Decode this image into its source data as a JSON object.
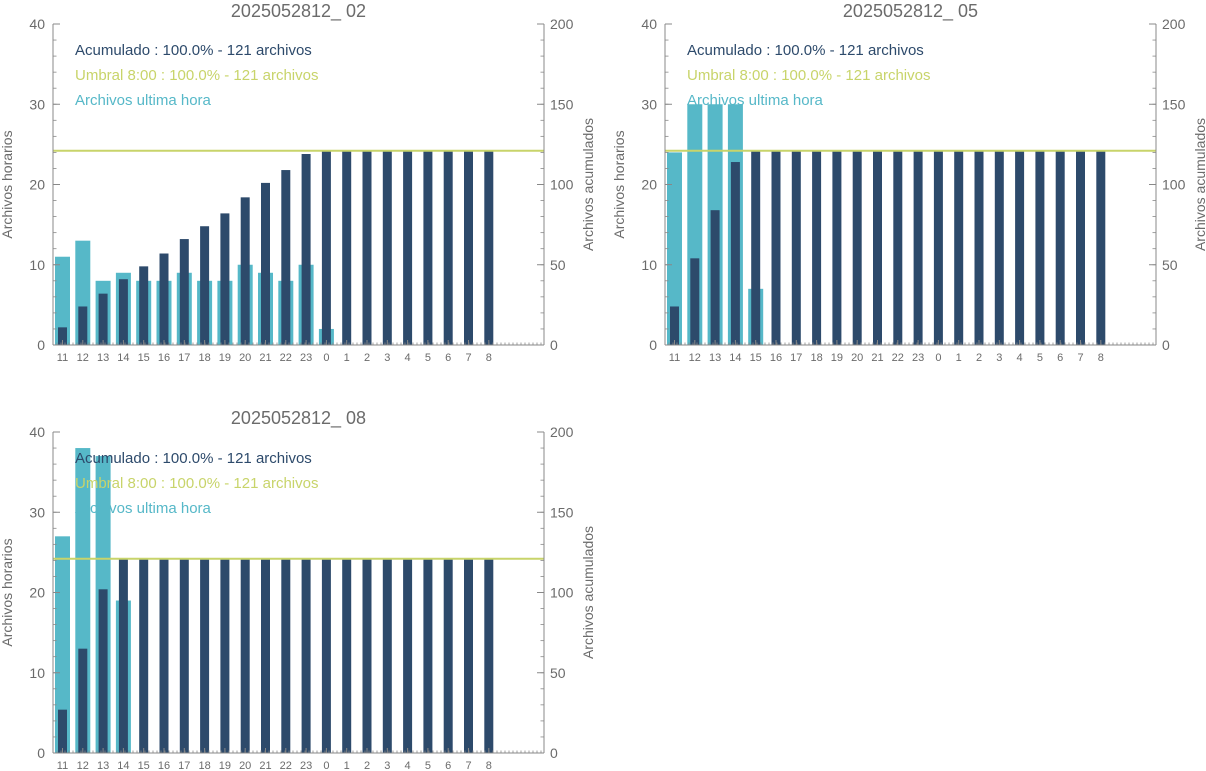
{
  "colors": {
    "hourly": "#56b8c8",
    "cumulative": "#2d4a6b",
    "threshold": "#c8d46a",
    "axis": "#888888",
    "text": "#6b6b6b"
  },
  "chart_data": [
    {
      "type": "bar",
      "title": "2025052812_ 02",
      "ylabel": "Archivos horarios",
      "y2label": "Archivos acumulados",
      "ylim": [
        0,
        40
      ],
      "y2lim": [
        0,
        200
      ],
      "yticks": [
        "0",
        "10",
        "20",
        "30",
        "40"
      ],
      "y2ticks": [
        "0",
        "50",
        "100",
        "150",
        "200"
      ],
      "categories": [
        "11",
        "12",
        "13",
        "14",
        "15",
        "16",
        "17",
        "18",
        "19",
        "20",
        "21",
        "22",
        "23",
        "0",
        "1",
        "2",
        "3",
        "4",
        "5",
        "6",
        "7",
        "8"
      ],
      "series": [
        {
          "name": "Archivos ultima hora",
          "axis": "left",
          "values": [
            11,
            13,
            8,
            9,
            8,
            8,
            9,
            8,
            8,
            10,
            9,
            8,
            10,
            2,
            0,
            0,
            0,
            0,
            0,
            0,
            0,
            0
          ]
        },
        {
          "name": "Acumulado",
          "axis": "right",
          "values": [
            11,
            24,
            32,
            41,
            49,
            57,
            66,
            74,
            82,
            92,
            101,
            109,
            119,
            121,
            121,
            121,
            121,
            121,
            121,
            121,
            121,
            121
          ]
        }
      ],
      "threshold": 121,
      "legend": [
        {
          "text": "Acumulado : 100.0% - 121 archivos",
          "color": "#2d4a6b"
        },
        {
          "text": "Umbral 8:00 : 100.0% - 121 archivos",
          "color": "#c8d46a"
        },
        {
          "text": "Archivos ultima hora",
          "color": "#56b8c8"
        }
      ]
    },
    {
      "type": "bar",
      "title": "2025052812_ 05",
      "ylabel": "Archivos horarios",
      "y2label": "Archivos acumulados",
      "ylim": [
        0,
        40
      ],
      "y2lim": [
        0,
        200
      ],
      "yticks": [
        "0",
        "10",
        "20",
        "30",
        "40"
      ],
      "y2ticks": [
        "0",
        "50",
        "100",
        "150",
        "200"
      ],
      "categories": [
        "11",
        "12",
        "13",
        "14",
        "15",
        "16",
        "17",
        "18",
        "19",
        "20",
        "21",
        "22",
        "23",
        "0",
        "1",
        "2",
        "3",
        "4",
        "5",
        "6",
        "7",
        "8"
      ],
      "series": [
        {
          "name": "Archivos ultima hora",
          "axis": "left",
          "values": [
            24,
            30,
            30,
            30,
            7,
            0,
            0,
            0,
            0,
            0,
            0,
            0,
            0,
            0,
            0,
            0,
            0,
            0,
            0,
            0,
            0,
            0
          ]
        },
        {
          "name": "Acumulado",
          "axis": "right",
          "values": [
            24,
            54,
            84,
            114,
            121,
            121,
            121,
            121,
            121,
            121,
            121,
            121,
            121,
            121,
            121,
            121,
            121,
            121,
            121,
            121,
            121,
            121
          ]
        }
      ],
      "threshold": 121,
      "legend": [
        {
          "text": "Acumulado : 100.0% - 121 archivos",
          "color": "#2d4a6b"
        },
        {
          "text": "Umbral 8:00 : 100.0% - 121 archivos",
          "color": "#c8d46a"
        },
        {
          "text": "Archivos ultima hora",
          "color": "#56b8c8"
        }
      ]
    },
    {
      "type": "bar",
      "title": "2025052812_ 08",
      "ylabel": "Archivos horarios",
      "y2label": "Archivos acumulados",
      "ylim": [
        0,
        40
      ],
      "y2lim": [
        0,
        200
      ],
      "yticks": [
        "0",
        "10",
        "20",
        "30",
        "40"
      ],
      "y2ticks": [
        "0",
        "50",
        "100",
        "150",
        "200"
      ],
      "categories": [
        "11",
        "12",
        "13",
        "14",
        "15",
        "16",
        "17",
        "18",
        "19",
        "20",
        "21",
        "22",
        "23",
        "0",
        "1",
        "2",
        "3",
        "4",
        "5",
        "6",
        "7",
        "8"
      ],
      "series": [
        {
          "name": "Archivos ultima hora",
          "axis": "left",
          "values": [
            27,
            38,
            37,
            19,
            0,
            0,
            0,
            0,
            0,
            0,
            0,
            0,
            0,
            0,
            0,
            0,
            0,
            0,
            0,
            0,
            0,
            0
          ]
        },
        {
          "name": "Acumulado",
          "axis": "right",
          "values": [
            27,
            65,
            102,
            121,
            121,
            121,
            121,
            121,
            121,
            121,
            121,
            121,
            121,
            121,
            121,
            121,
            121,
            121,
            121,
            121,
            121,
            121
          ]
        }
      ],
      "threshold": 121,
      "legend": [
        {
          "text": "Acumulado : 100.0% - 121 archivos",
          "color": "#2d4a6b"
        },
        {
          "text": "Umbral 8:00 : 100.0% - 121 archivos",
          "color": "#c8d46a"
        },
        {
          "text": "Archivos ultima hora",
          "color": "#56b8c8"
        }
      ]
    }
  ]
}
